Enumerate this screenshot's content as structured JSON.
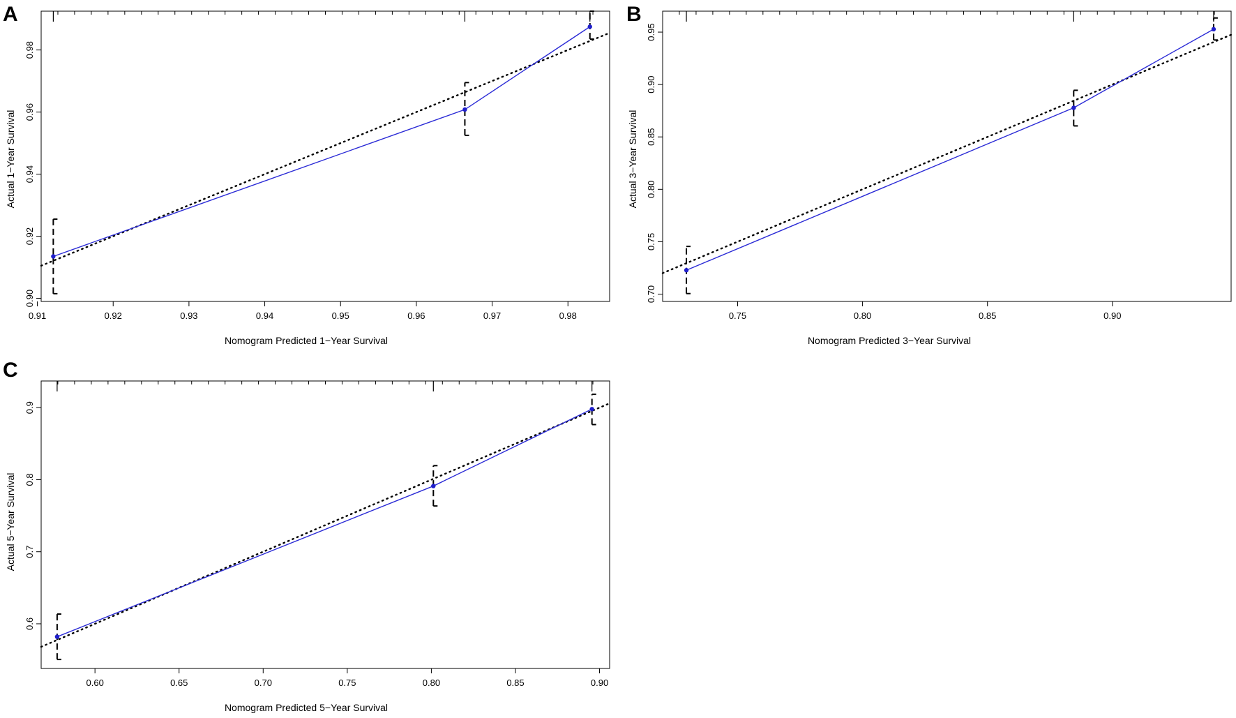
{
  "figure": {
    "style": {
      "calibration_color": "#2b2bd6",
      "point_color": "#1f1fcc",
      "ideal_color": "#000000",
      "errorbar_color": "#000000",
      "frame_color": "#000000"
    }
  },
  "chart_data": [
    {
      "panel": "A",
      "type": "line",
      "title": "",
      "xlabel": "Nomogram Predicted 1−Year Survival",
      "ylabel": "Actual 1−Year Survival",
      "xlim": [
        0.9105,
        0.9855
      ],
      "ylim": [
        0.899,
        0.9925
      ],
      "xticks": [
        "0.91",
        "0.92",
        "0.93",
        "0.94",
        "0.95",
        "0.96",
        "0.97",
        "0.98"
      ],
      "yticks": [
        "0.90",
        "0.92",
        "0.94",
        "0.96",
        "0.98"
      ],
      "series": [
        {
          "x": [
            0.9121,
            0.9664,
            0.9829
          ],
          "y": [
            0.9135,
            0.9608,
            0.9875
          ],
          "ci_lower": [
            0.9015,
            0.9525,
            0.9835
          ],
          "ci_upper": [
            0.9255,
            0.9695,
            0.9925
          ]
        }
      ],
      "ideal_line": [
        [
          0.9105,
          0.9105
        ],
        [
          0.9855,
          0.9855
        ]
      ],
      "top_rug_x": [
        0.9121,
        0.9664,
        0.9829
      ],
      "grid": false
    },
    {
      "panel": "B",
      "type": "line",
      "title": "",
      "xlabel": "Nomogram Predicted 3−Year Survival",
      "ylabel": "Actual 3−Year Survival",
      "xlim": [
        0.72,
        0.9475
      ],
      "ylim": [
        0.693,
        0.97
      ],
      "xticks": [
        "0.75",
        "0.80",
        "0.85",
        "0.90"
      ],
      "yticks": [
        "0.70",
        "0.75",
        "0.80",
        "0.85",
        "0.90",
        "0.95"
      ],
      "series": [
        {
          "x": [
            0.7295,
            0.8845,
            0.9405
          ],
          "y": [
            0.7228,
            0.8778,
            0.9528
          ],
          "ci_lower": [
            0.7005,
            0.8605,
            0.9425
          ],
          "ci_upper": [
            0.7455,
            0.8945,
            0.9635
          ]
        }
      ],
      "ideal_line": [
        [
          0.72,
          0.72
        ],
        [
          0.9475,
          0.9475
        ]
      ],
      "top_rug_x": [
        0.7295,
        0.8845,
        0.9405
      ],
      "grid": false
    },
    {
      "panel": "C",
      "type": "line",
      "title": "",
      "xlabel": "Nomogram Predicted 5−Year Survival",
      "ylabel": "Actual 5−Year Survival",
      "xlim": [
        0.568,
        0.906
      ],
      "ylim": [
        0.538,
        0.937
      ],
      "xticks": [
        "0.60",
        "0.65",
        "0.70",
        "0.75",
        "0.80",
        "0.85",
        "0.90"
      ],
      "yticks": [
        "0.6",
        "0.7",
        "0.8",
        "0.9"
      ],
      "series": [
        {
          "x": [
            0.5775,
            0.8012,
            0.8955
          ],
          "y": [
            0.582,
            0.7912,
            0.898
          ],
          "ci_lower": [
            0.5505,
            0.7635,
            0.8765
          ],
          "ci_upper": [
            0.6135,
            0.8195,
            0.9185
          ]
        }
      ],
      "ideal_line": [
        [
          0.568,
          0.568
        ],
        [
          0.906,
          0.906
        ]
      ],
      "top_rug_x": [
        0.5775,
        0.8012,
        0.8955
      ],
      "grid": false
    }
  ]
}
